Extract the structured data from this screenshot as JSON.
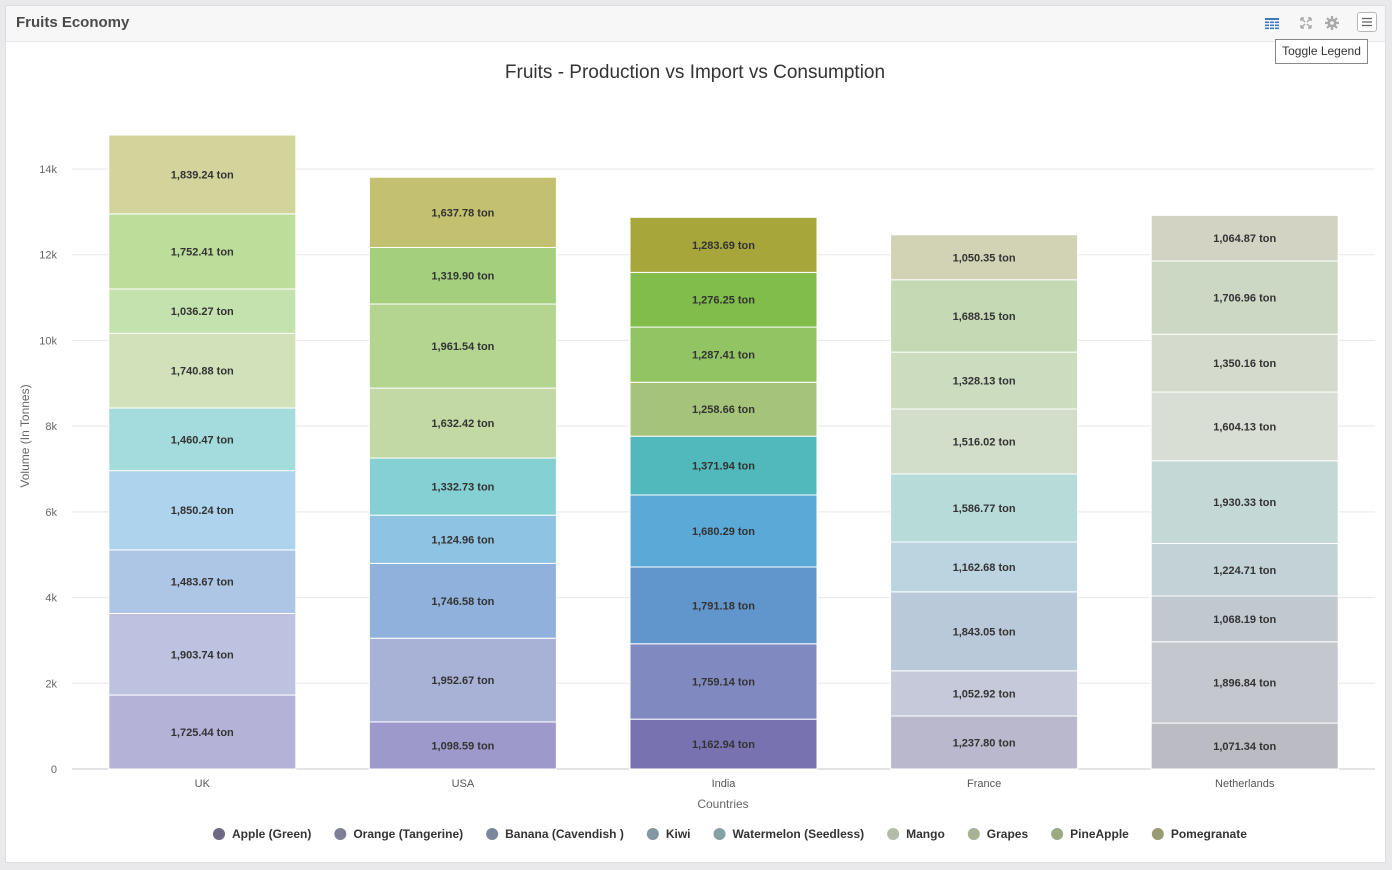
{
  "panel": {
    "title": "Fruits Economy"
  },
  "toolbar": {
    "tooltip": "Toggle Legend"
  },
  "chart_data": {
    "type": "bar",
    "stacked": true,
    "title": "Fruits - Production vs Import vs Consumption",
    "xlabel": "Countries",
    "ylabel": "Volume (In Tonnes)",
    "ylim": [
      0,
      14000
    ],
    "yticks": [
      0,
      2000,
      4000,
      6000,
      8000,
      10000,
      12000,
      14000
    ],
    "ytick_labels": [
      "0",
      "2k",
      "4k",
      "6k",
      "8k",
      "10k",
      "12k",
      "14k"
    ],
    "grid": true,
    "legend_position": "bottom",
    "value_suffix": " ton",
    "categories": [
      "UK",
      "USA",
      "India",
      "France",
      "Netherlands"
    ],
    "series": [
      {
        "name": "Apple (Green)",
        "values": [
          1725.44,
          1098.59,
          1162.94,
          1237.8,
          1071.34
        ],
        "legend_color": "#6e6886"
      },
      {
        "name": "Orange (Tangerine)",
        "values": [
          1903.74,
          1952.67,
          1759.14,
          1052.92,
          1896.84
        ],
        "legend_color": "#7c7f95"
      },
      {
        "name": "Banana (Cavendish )",
        "values": [
          1483.67,
          1746.58,
          1791.18,
          1843.05,
          1068.19
        ],
        "legend_color": "#7c879b"
      },
      {
        "name": "Kiwi",
        "values": [
          1850.24,
          1124.96,
          1680.29,
          1162.68,
          1224.71
        ],
        "legend_color": "#8496a2"
      },
      {
        "name": "Watermelon (Seedless)",
        "values": [
          1460.47,
          1332.73,
          1371.94,
          1586.77,
          1930.33
        ],
        "legend_color": "#87a0a2"
      },
      {
        "name": "Mango",
        "values": [
          1740.88,
          1632.42,
          1258.66,
          1516.02,
          1604.13
        ],
        "legend_color": "#b1bcaa"
      },
      {
        "name": "Grapes",
        "values": [
          1036.27,
          1961.54,
          1287.41,
          1328.13,
          1350.16
        ],
        "legend_color": "#a7b296"
      },
      {
        "name": "PineApple",
        "values": [
          1752.41,
          1319.9,
          1276.25,
          1688.15,
          1706.96
        ],
        "legend_color": "#9caa84"
      },
      {
        "name": "Pomegranate",
        "values": [
          1839.24,
          1637.78,
          1283.69,
          1050.35,
          1064.87
        ],
        "legend_color": "#9b9a73"
      }
    ],
    "colors": [
      [
        "#b5b2d8",
        "#bcc2df",
        "#adc6e6",
        "#aed3ec",
        "#a4dcdd",
        "#d1e2bb",
        "#c4e2ad",
        "#bcde9a",
        "#d3d49c"
      ],
      [
        "#9d9acb",
        "#a8b1d6",
        "#8fb1db",
        "#8fc3e3",
        "#85d0d2",
        "#c2d9a4",
        "#b3d590",
        "#a4cf7c",
        "#c3c06f"
      ],
      [
        "#7872b0",
        "#818ac0",
        "#6196cc",
        "#5aa9d7",
        "#51b9bb",
        "#a5c479",
        "#92c463",
        "#80bd4a",
        "#a7a63b"
      ],
      [
        "#b9b8cc",
        "#c6c9d9",
        "#bac9d9",
        "#bbd4df",
        "#b7dbd9",
        "#d2dec9",
        "#cbdcbf",
        "#c4d9b4",
        "#d2d2b4"
      ],
      [
        "#bbbbc3",
        "#c4c7cd",
        "#c0c8d0",
        "#c2d2d6",
        "#c4d8d6",
        "#d9ded5",
        "#d4dbcc",
        "#cdd8c4",
        "#d3d3c3"
      ]
    ]
  }
}
